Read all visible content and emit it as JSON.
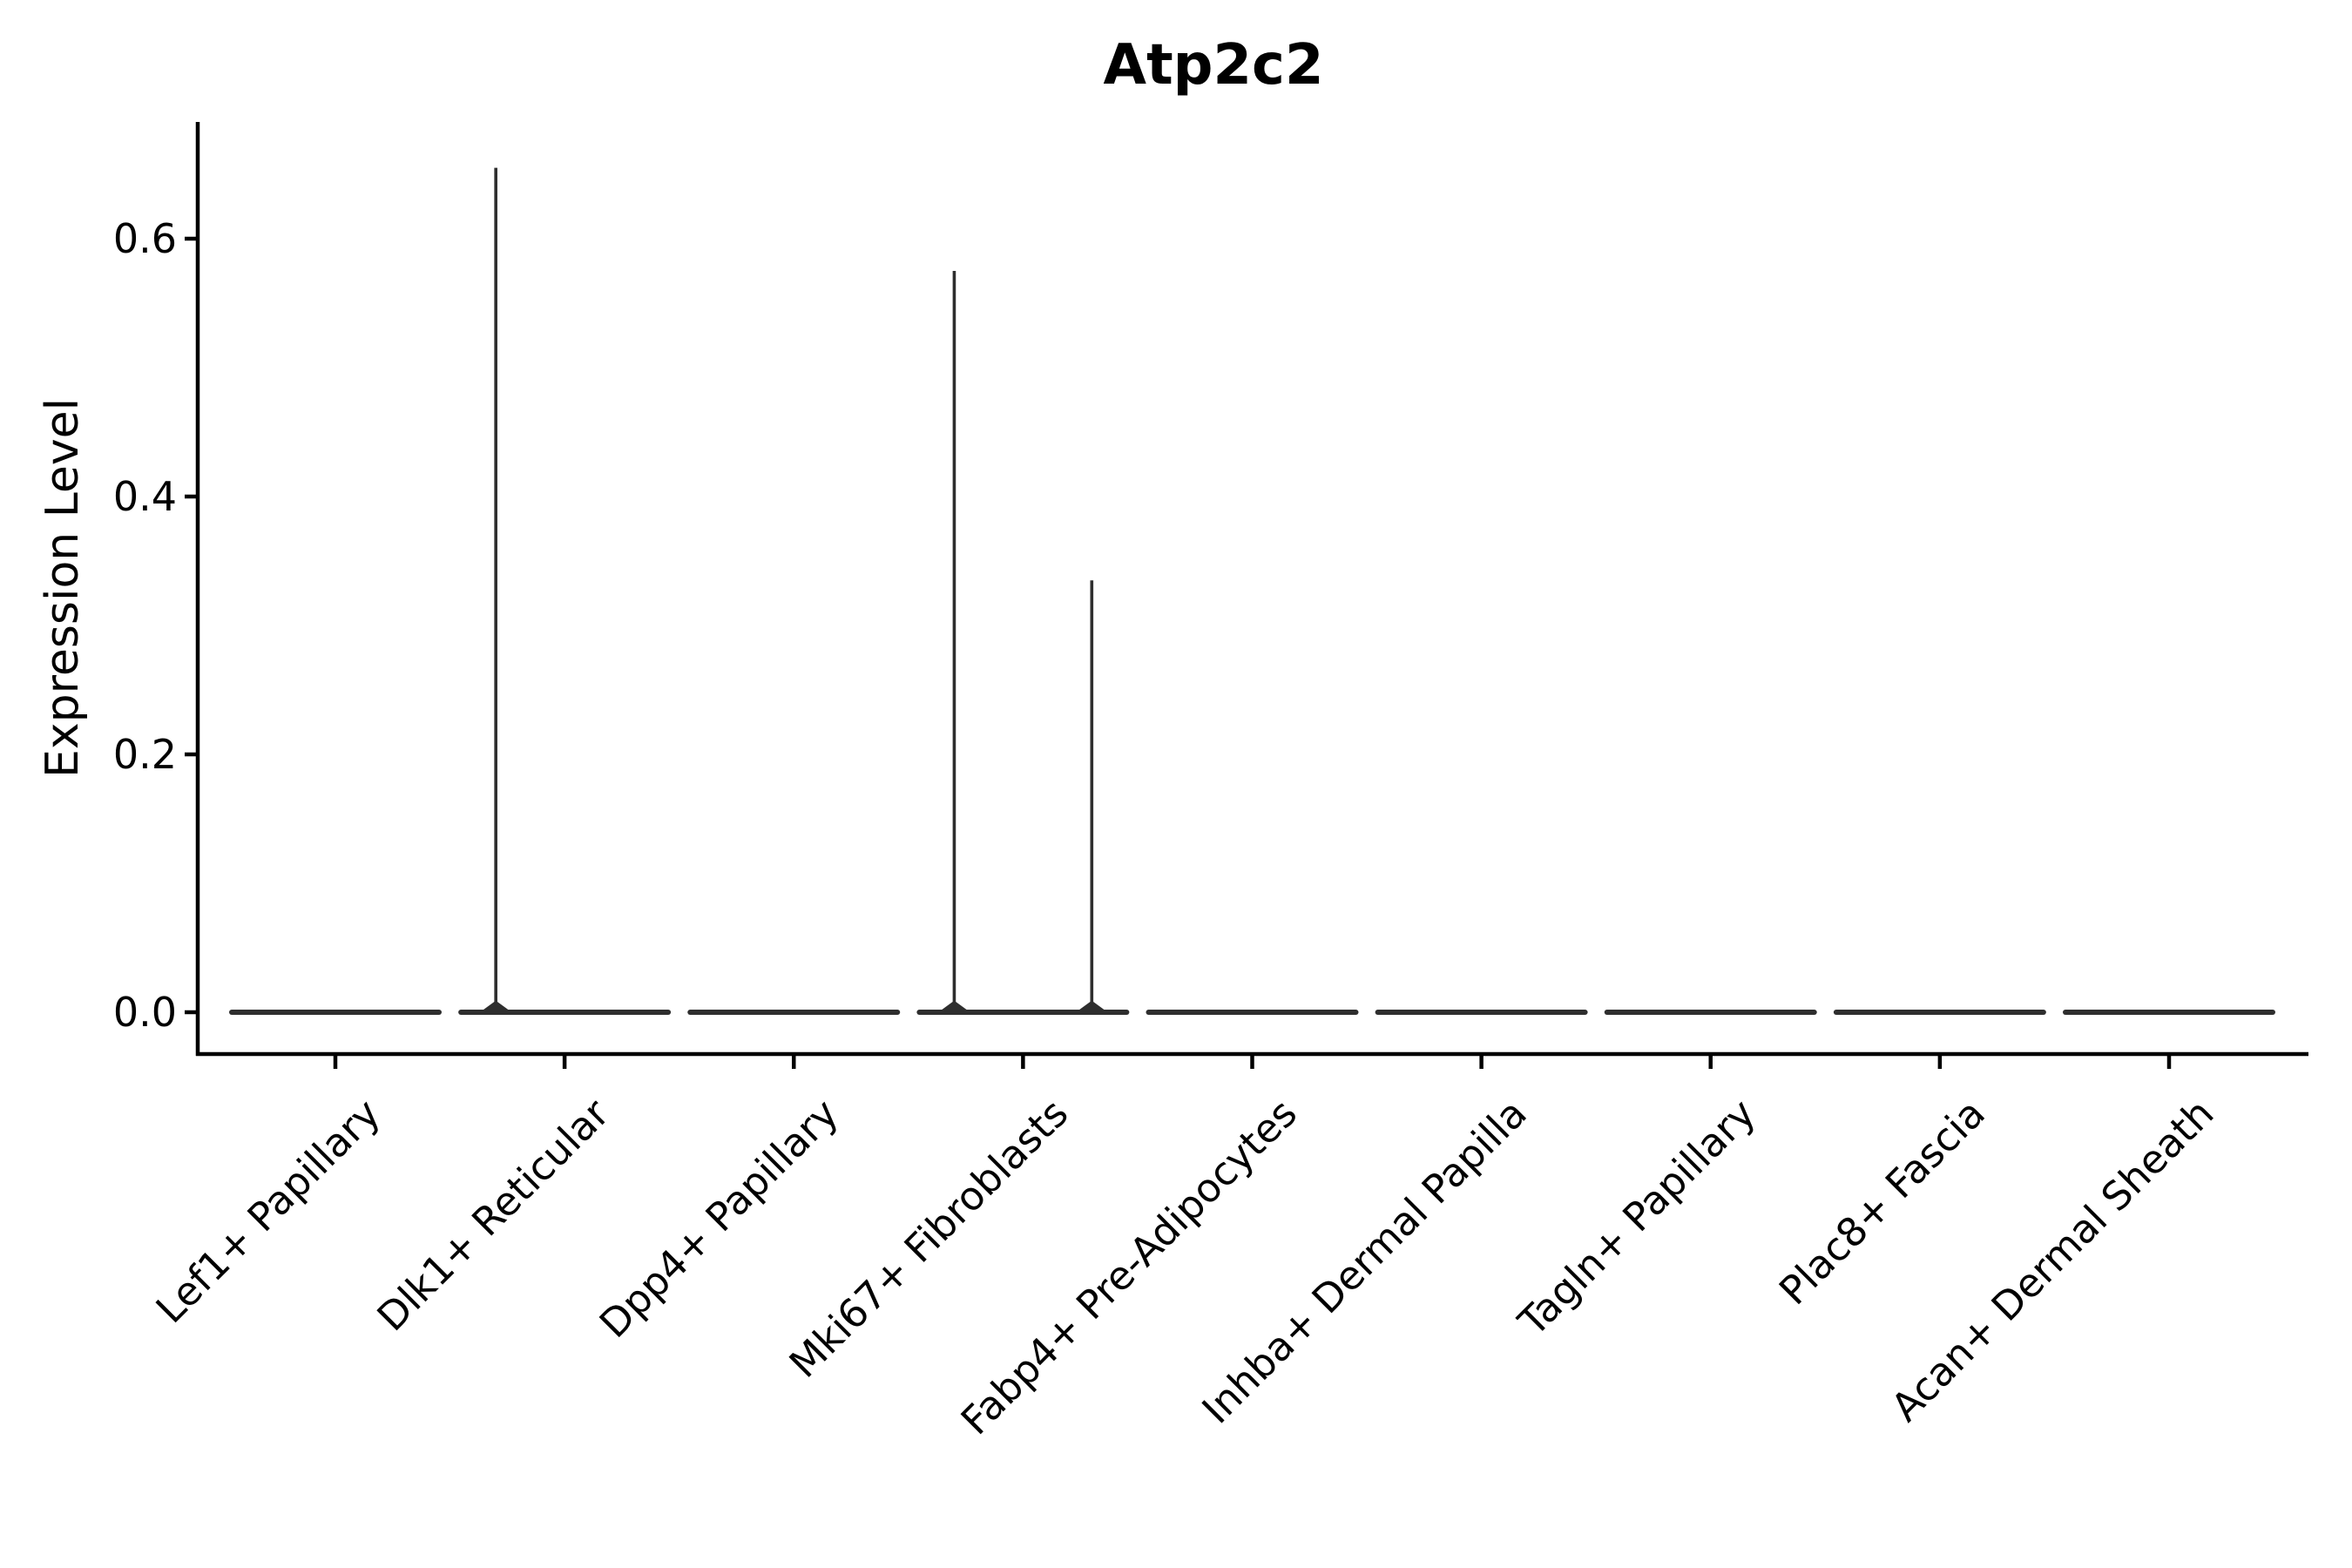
{
  "chart_data": {
    "type": "violin",
    "title": "Atp2c2",
    "ylabel": "Expression Level",
    "xlabel": "",
    "grid": false,
    "legend": "none",
    "background_color": "#ffffff",
    "axis_color": "#000000",
    "violin_color": "#2e2e2e",
    "ylim": [
      -0.03,
      0.69
    ],
    "yticks": [
      0.0,
      0.2,
      0.4,
      0.6
    ],
    "ytick_labels": [
      "0.0",
      "0.2",
      "0.4",
      "0.6"
    ],
    "categories": [
      "Lef1+ Papillary",
      "Dlk1+ Reticular",
      "Dpp4+ Papillary",
      "Mki67+ Fibroblasts",
      "Fabp4+ Pre-Adipocytes",
      "Inhba+ Dermal Papilla",
      "Tagln+ Papillary",
      "Plac8+ Fascia",
      "Acan+ Dermal Sheath"
    ],
    "violins": [
      {
        "category": "Lef1+ Papillary",
        "baseline_value": 0.0,
        "tails": []
      },
      {
        "category": "Dlk1+ Reticular",
        "baseline_value": 0.0,
        "tails": [
          {
            "offset": -0.3,
            "max": 0.655
          }
        ]
      },
      {
        "category": "Dpp4+ Papillary",
        "baseline_value": 0.0,
        "tails": []
      },
      {
        "category": "Mki67+ Fibroblasts",
        "baseline_value": 0.0,
        "tails": [
          {
            "offset": -0.3,
            "max": 0.575
          },
          {
            "offset": 0.3,
            "max": 0.335
          }
        ]
      },
      {
        "category": "Fabp4+ Pre-Adipocytes",
        "baseline_value": 0.0,
        "tails": []
      },
      {
        "category": "Inhba+ Dermal Papilla",
        "baseline_value": 0.0,
        "tails": []
      },
      {
        "category": "Tagln+ Papillary",
        "baseline_value": 0.0,
        "tails": []
      },
      {
        "category": "Plac8+ Fascia",
        "baseline_value": 0.0,
        "tails": []
      },
      {
        "category": "Acan+ Dermal Sheath",
        "baseline_value": 0.0,
        "tails": []
      }
    ]
  }
}
